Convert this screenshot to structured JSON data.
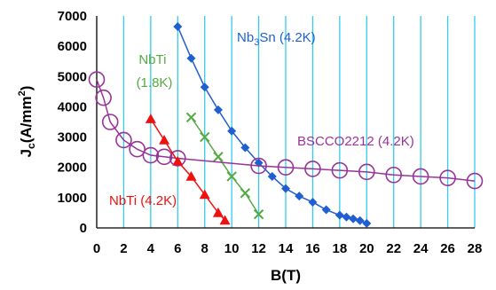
{
  "chart_data": {
    "type": "scatter",
    "xlabel": "B(T)",
    "ylabel": "Jc(A/mm2)",
    "ylabel_parts": {
      "main": "J",
      "sub": "c",
      "unit": "(A/mm",
      "sup": "2",
      "close": ")"
    },
    "xlim": [
      0,
      28
    ],
    "ylim": [
      0,
      7000
    ],
    "x_ticks": [
      "0",
      "2",
      "4",
      "6",
      "8",
      "10",
      "12",
      "14",
      "16",
      "18",
      "20",
      "22",
      "24",
      "26",
      "28"
    ],
    "y_ticks": [
      "0",
      "1000",
      "2000",
      "3000",
      "4000",
      "5000",
      "6000",
      "7000"
    ],
    "grid": {
      "vertical": true,
      "horizontal": false,
      "color": "#33ccee"
    },
    "series": [
      {
        "label_parts": {
          "main": "Nb",
          "sub": "3",
          "rest": "Sn (4.2K)"
        },
        "color": "#1f5fd0",
        "marker": "diamond",
        "points": [
          [
            6,
            6650
          ],
          [
            7,
            5600
          ],
          [
            8,
            4650
          ],
          [
            9,
            3900
          ],
          [
            10,
            3200
          ],
          [
            11,
            2650
          ],
          [
            12,
            2150
          ],
          [
            13,
            1700
          ],
          [
            14,
            1300
          ],
          [
            15,
            1050
          ],
          [
            16,
            850
          ],
          [
            17,
            600
          ],
          [
            18,
            420
          ],
          [
            18.5,
            360
          ],
          [
            19,
            300
          ],
          [
            19.5,
            240
          ],
          [
            20,
            150
          ]
        ]
      },
      {
        "label_lines": [
          "NbTi",
          "(1.8K)"
        ],
        "color": "#55aa44",
        "marker": "x",
        "points": [
          [
            7,
            3650
          ],
          [
            8,
            3000
          ],
          [
            9,
            2350
          ],
          [
            10,
            1700
          ],
          [
            11,
            1150
          ],
          [
            12,
            450
          ]
        ]
      },
      {
        "label": "BSCCO2212 (4.2K)",
        "color": "#993399",
        "marker": "circle",
        "points": [
          [
            0,
            4900
          ],
          [
            0.5,
            4300
          ],
          [
            1,
            3500
          ],
          [
            2,
            2900
          ],
          [
            3,
            2600
          ],
          [
            4,
            2400
          ],
          [
            5,
            2350
          ],
          [
            6,
            2300
          ],
          [
            12,
            2050
          ],
          [
            14,
            2000
          ],
          [
            16,
            1950
          ],
          [
            18,
            1900
          ],
          [
            20,
            1850
          ],
          [
            22,
            1750
          ],
          [
            24,
            1700
          ],
          [
            26,
            1650
          ],
          [
            28,
            1550
          ]
        ]
      },
      {
        "label": "NbTi (4.2K)",
        "color": "#ee1111",
        "marker": "triangle",
        "points": [
          [
            4,
            3600
          ],
          [
            5,
            2900
          ],
          [
            6,
            2200
          ],
          [
            7,
            1700
          ],
          [
            8,
            1100
          ],
          [
            9,
            500
          ],
          [
            9.5,
            250
          ]
        ]
      }
    ]
  }
}
